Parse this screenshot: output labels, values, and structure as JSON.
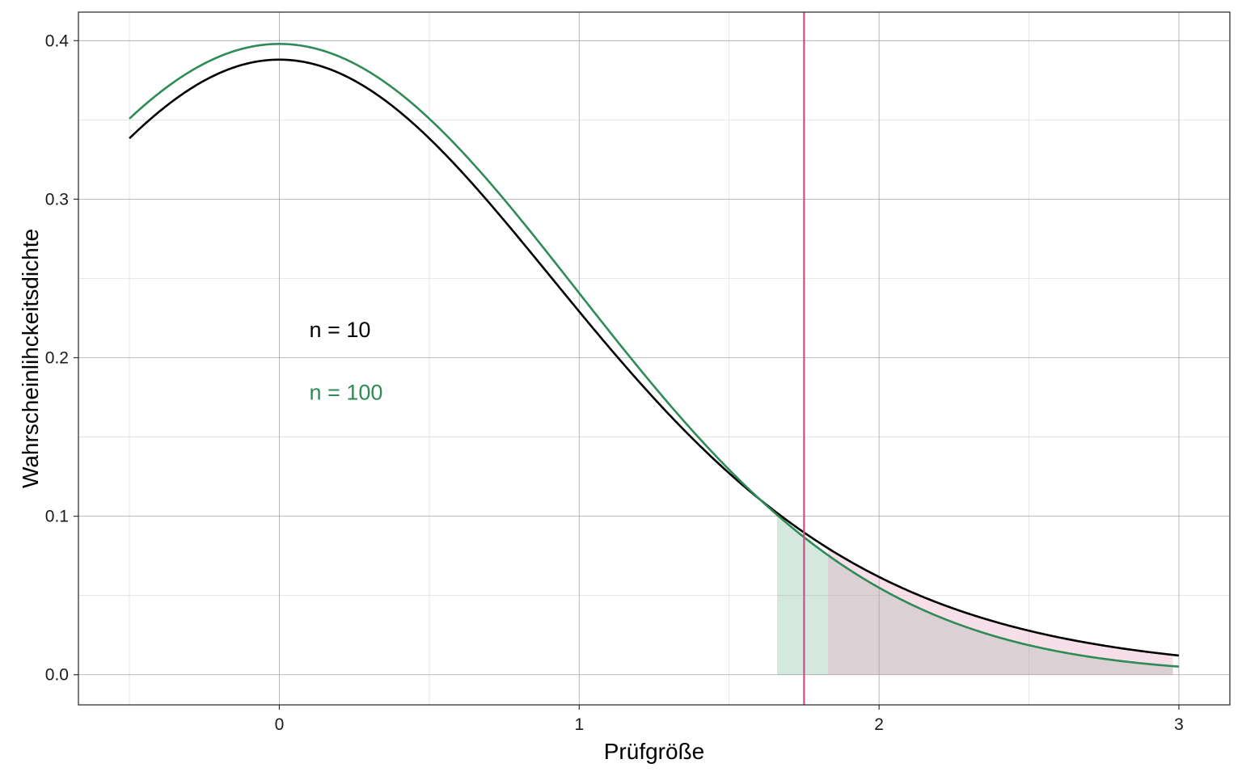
{
  "chart_data": {
    "type": "line",
    "title": "",
    "xlabel": "Prüfgröße",
    "ylabel": "Wahrscheinlihckeitsdichte",
    "xlim": [
      -0.67,
      3.17
    ],
    "ylim": [
      -0.019,
      0.418
    ],
    "x_ticks": [
      0,
      1,
      2,
      3
    ],
    "y_ticks": [
      0.0,
      0.1,
      0.2,
      0.3,
      0.4
    ],
    "x_tick_labels": [
      "0",
      "1",
      "2",
      "3"
    ],
    "y_tick_labels": [
      "0.0",
      "0.1",
      "0.2",
      "0.3",
      "0.4"
    ],
    "x_minor": [
      -0.5,
      0.5,
      1.5,
      2.5
    ],
    "y_minor": [
      0.05,
      0.15,
      0.25,
      0.35
    ],
    "grid": true,
    "x_range": [
      -0.5,
      3.0
    ],
    "series": [
      {
        "name": "n = 10",
        "distribution": "t",
        "df": 9,
        "color": "#000000"
      },
      {
        "name": "n = 100",
        "distribution": "t",
        "df": 99,
        "color": "#2e8b57"
      }
    ],
    "critical_value": {
      "x": 1.75,
      "color": "#cc4c8c"
    },
    "shaded_regions": [
      {
        "series": "n = 100",
        "from": 1.66,
        "to": 2.98,
        "color": "#2e8b57",
        "opacity": 0.2
      },
      {
        "series": "n = 10",
        "from": 1.83,
        "to": 2.98,
        "color": "#e8a3bf",
        "opacity": 0.35
      }
    ],
    "annotations": [
      {
        "text": "n = 10",
        "x": 0.1,
        "y": 0.2175,
        "color": "#000000"
      },
      {
        "text": "n = 100",
        "x": 0.1,
        "y": 0.178,
        "color": "#2e8b57"
      }
    ],
    "panel_background": "#ffffff",
    "major_grid_color": "#a6a6a6",
    "minor_grid_color": "#e0e0e0"
  }
}
